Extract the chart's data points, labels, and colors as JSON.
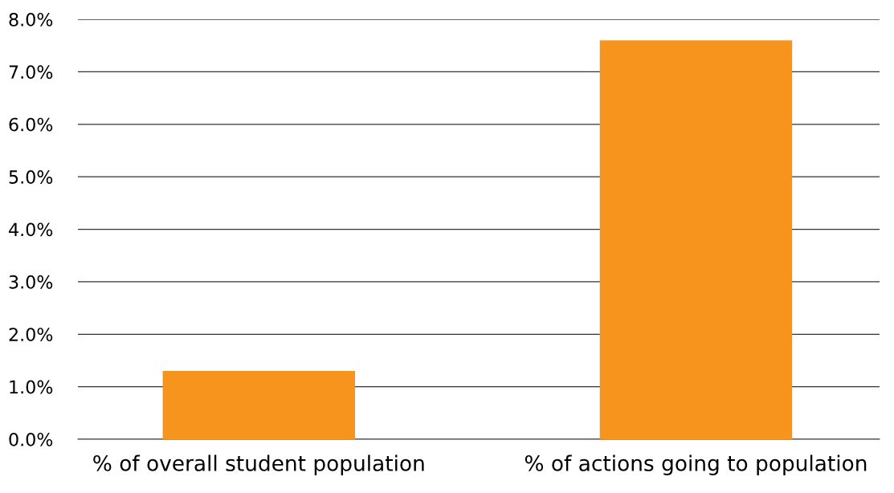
{
  "chart_data": {
    "type": "bar",
    "categories": [
      "% of overall student population",
      "% of actions going to population"
    ],
    "values": [
      1.3,
      7.6
    ],
    "color": "#f7941d",
    "ylim": [
      0,
      8
    ],
    "yticks": [
      {
        "value": 0,
        "label": "0.0%"
      },
      {
        "value": 1,
        "label": "1.0%"
      },
      {
        "value": 2,
        "label": "2.0%"
      },
      {
        "value": 3,
        "label": "3.0%"
      },
      {
        "value": 4,
        "label": "4.0%"
      },
      {
        "value": 5,
        "label": "5.0%"
      },
      {
        "value": 6,
        "label": "6.0%"
      },
      {
        "value": 7,
        "label": "7.0%"
      },
      {
        "value": 8,
        "label": "8.0%"
      }
    ],
    "grid": "y",
    "legend": false
  }
}
